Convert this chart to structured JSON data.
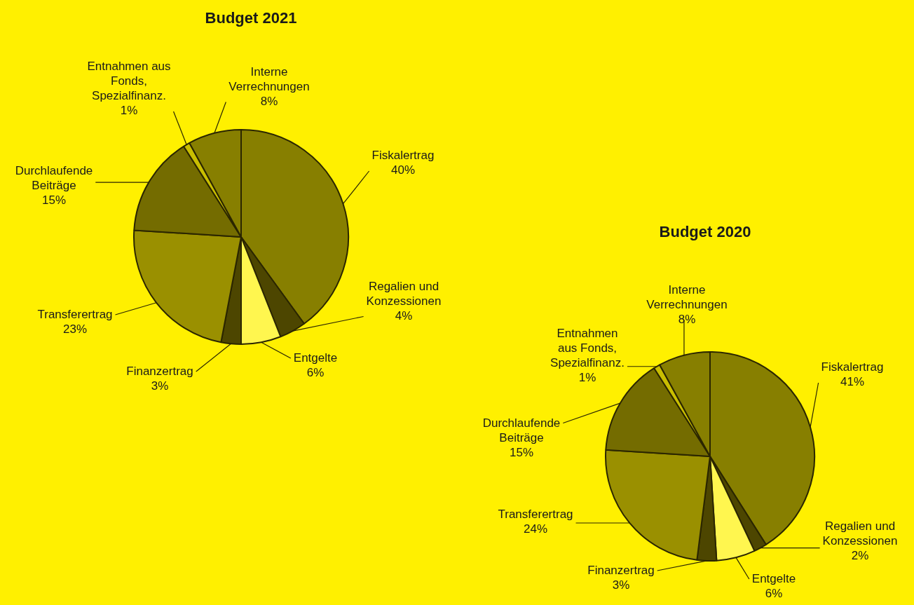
{
  "chart_data": [
    {
      "type": "pie",
      "title": "Budget 2021",
      "categories": [
        "Fiskalertrag",
        "Regalien und Konzessionen",
        "Entgelte",
        "Finanzertrag",
        "Transferertrag",
        "Durchlaufende Beiträge",
        "Entnahmen aus Fonds, Spezialfinanz.",
        "Interne Verrechnungen"
      ],
      "values": [
        40,
        4,
        6,
        3,
        23,
        15,
        1,
        8
      ],
      "value_labels": [
        "40%",
        "4%",
        "6%",
        "3%",
        "23%",
        "15%",
        "1%",
        "8%"
      ],
      "colors": [
        "#877f00",
        "#4d4600",
        "#fff64f",
        "#4d4600",
        "#9a9000",
        "#746c00",
        "#c9be00",
        "#877f00"
      ],
      "legend": false
    },
    {
      "type": "pie",
      "title": "Budget 2020",
      "categories": [
        "Fiskalertrag",
        "Regalien und Konzessionen",
        "Entgelte",
        "Finanzertrag",
        "Transferertrag",
        "Durchlaufende Beiträge",
        "Entnahmen aus Fonds, Spezialfinanz.",
        "Interne Verrechnungen"
      ],
      "values": [
        41,
        2,
        6,
        3,
        24,
        15,
        1,
        8
      ],
      "value_labels": [
        "41%",
        "2%",
        "6%",
        "3%",
        "24%",
        "15%",
        "1%",
        "8%"
      ],
      "colors": [
        "#877f00",
        "#4d4600",
        "#fff64f",
        "#4d4600",
        "#9a9000",
        "#746c00",
        "#c9be00",
        "#877f00"
      ],
      "legend": false
    }
  ]
}
